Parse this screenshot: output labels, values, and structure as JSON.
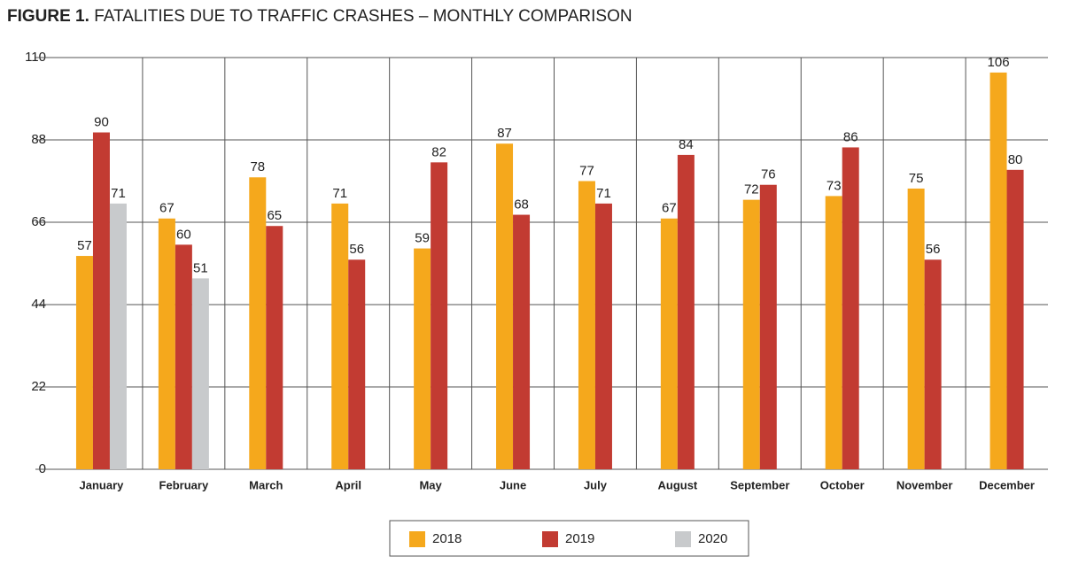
{
  "chart_data": {
    "type": "bar",
    "figure_label": "FIGURE 1.",
    "title": "FATALITIES DUE TO TRAFFIC CRASHES – MONTHLY COMPARISON",
    "categories": [
      "January",
      "February",
      "March",
      "April",
      "May",
      "June",
      "July",
      "August",
      "September",
      "October",
      "November",
      "December"
    ],
    "series": [
      {
        "name": "2018",
        "color": "#f5a81c",
        "values": [
          57,
          67,
          78,
          71,
          59,
          87,
          77,
          67,
          72,
          73,
          75,
          106
        ]
      },
      {
        "name": "2019",
        "color": "#c23b32",
        "values": [
          90,
          60,
          65,
          56,
          82,
          68,
          71,
          84,
          76,
          86,
          56,
          80
        ]
      },
      {
        "name": "2020",
        "color": "#c8cacc",
        "values": [
          71,
          51,
          null,
          null,
          null,
          null,
          null,
          null,
          null,
          null,
          null,
          null
        ]
      }
    ],
    "ylim": [
      0,
      110
    ],
    "yticks": [
      0,
      22,
      44,
      66,
      88,
      110
    ],
    "grid": true,
    "legend": "bottom"
  }
}
